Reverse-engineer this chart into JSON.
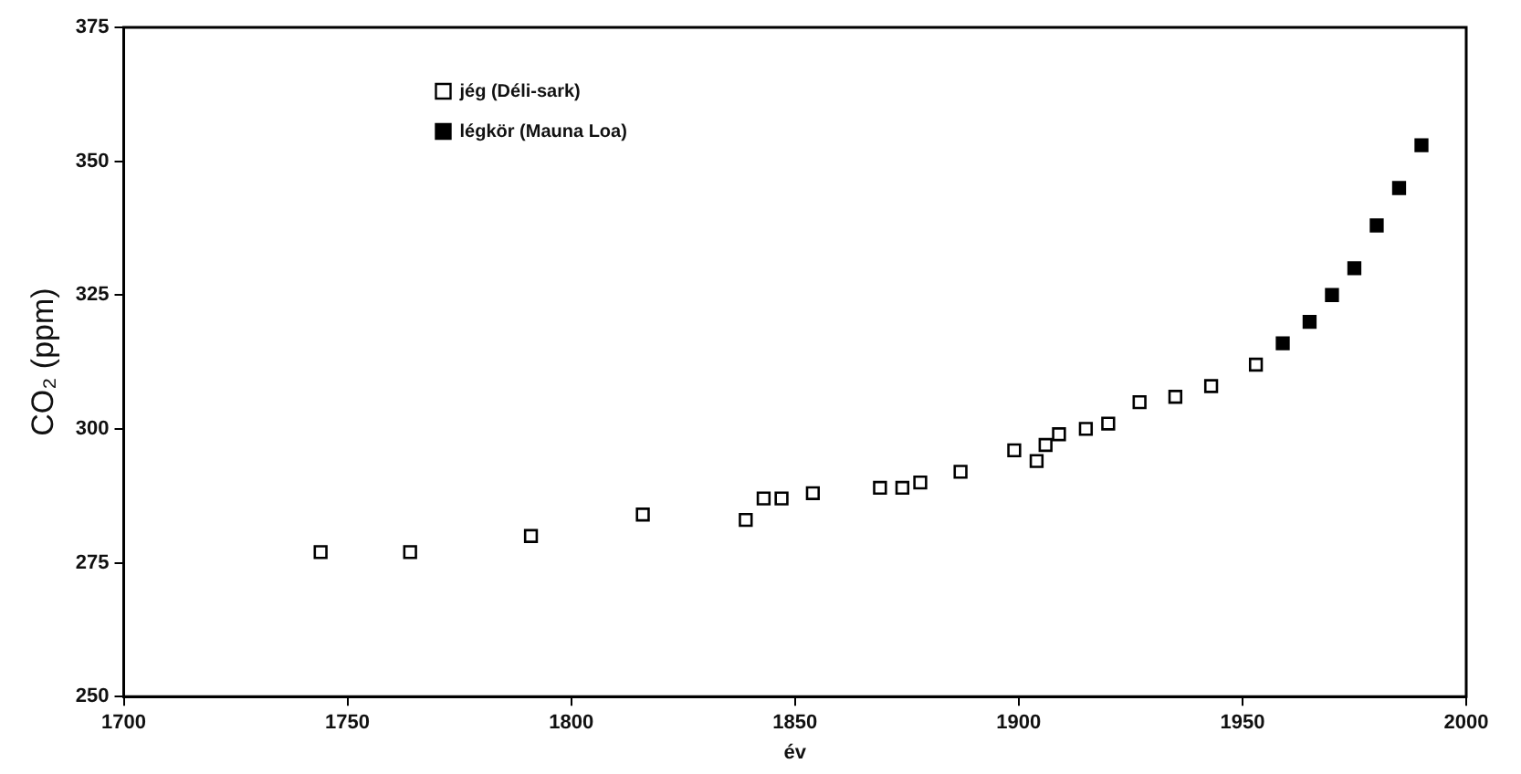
{
  "chart_data": {
    "type": "scatter",
    "xlabel": "év",
    "ylabel": "CO₂ (ppm)",
    "xlim": [
      1700,
      2000
    ],
    "xticks": [
      1700,
      1750,
      1800,
      1850,
      1900,
      1950,
      2000
    ],
    "ylim": [
      250,
      375
    ],
    "yticks": [
      250,
      275,
      300,
      325,
      350,
      375
    ],
    "grid": false,
    "legend": "top left",
    "marker": "square",
    "series": [
      {
        "name": "jég (Déli-sark)",
        "color": "#ffffff",
        "x": [
          1744,
          1764,
          1791,
          1816,
          1839,
          1843,
          1847,
          1854,
          1869,
          1874,
          1878,
          1887,
          1899,
          1904,
          1906,
          1909,
          1915,
          1920,
          1927,
          1935,
          1943,
          1953
        ],
        "values": [
          277,
          277,
          280,
          284,
          283,
          287,
          287,
          288,
          289,
          289,
          290,
          292,
          296,
          294,
          297,
          299,
          300,
          301,
          305,
          306,
          308,
          312
        ]
      },
      {
        "name": "légkör (Mauna Loa)",
        "color": "#000000",
        "x": [
          1959,
          1965,
          1970,
          1975,
          1980,
          1985,
          1990
        ],
        "values": [
          316,
          320,
          325,
          330,
          338,
          345,
          353
        ]
      }
    ]
  }
}
